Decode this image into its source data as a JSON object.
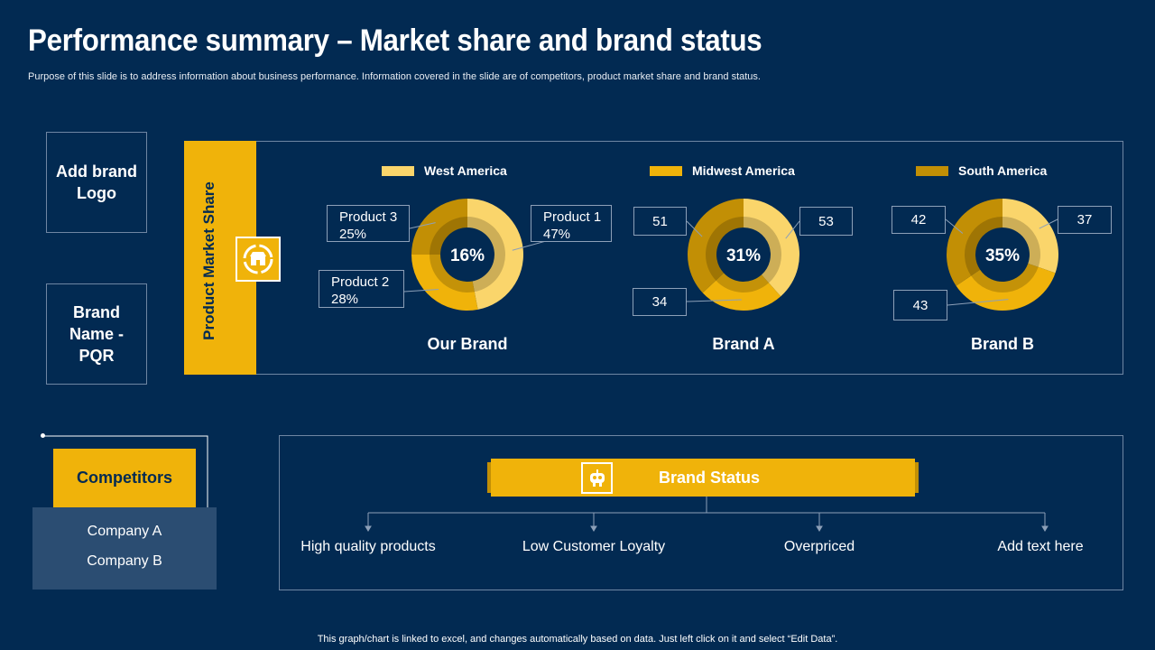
{
  "title": "Performance summary – Market share and brand status",
  "subtitle": "Purpose of this slide is to address information about business performance. Information covered in the slide are of competitors, product market share and brand status.",
  "brand_logo_text": "Add brand Logo",
  "brand_name_text": "Brand Name - PQR",
  "market_share_label": "Product Market Share",
  "icons": {
    "market_share": "storefront-icon",
    "brand_status": "robot-icon"
  },
  "colors": {
    "background": "#022a52",
    "accent": "#f0b30a",
    "west": "#fad56b",
    "midwest": "#f0b30a",
    "south": "#c28f05"
  },
  "chart_data": [
    {
      "type": "donut",
      "title": "Our Brand",
      "center_label": "16%",
      "legend": [
        "West America",
        "Midwest America",
        "South America"
      ],
      "series": [
        {
          "name": "West America",
          "label": "Product 1",
          "value": 47,
          "display": "47%"
        },
        {
          "name": "Midwest America",
          "label": "Product 2",
          "value": 28,
          "display": "28%"
        },
        {
          "name": "South America",
          "label": "Product 3",
          "value": 25,
          "display": "25%"
        }
      ]
    },
    {
      "type": "donut",
      "title": "Brand A",
      "center_label": "31%",
      "series": [
        {
          "name": "West America",
          "value": 53,
          "display": "53"
        },
        {
          "name": "Midwest America",
          "value": 34,
          "display": "34"
        },
        {
          "name": "South America",
          "value": 51,
          "display": "51"
        }
      ]
    },
    {
      "type": "donut",
      "title": "Brand B",
      "center_label": "35%",
      "series": [
        {
          "name": "West America",
          "value": 37,
          "display": "37"
        },
        {
          "name": "Midwest America",
          "value": 43,
          "display": "43"
        },
        {
          "name": "South America",
          "value": 42,
          "display": "42"
        }
      ]
    }
  ],
  "competitors": {
    "title": "Competitors",
    "companies": [
      "Company A",
      "Company B"
    ]
  },
  "brand_status": {
    "title": "Brand Status",
    "items": [
      "High quality products",
      "Low Customer Loyalty",
      "Overpriced",
      "Add text here"
    ]
  },
  "footer": "This graph/chart is linked to excel,  and changes automatically based on data. Just left click on it and select “Edit Data”."
}
